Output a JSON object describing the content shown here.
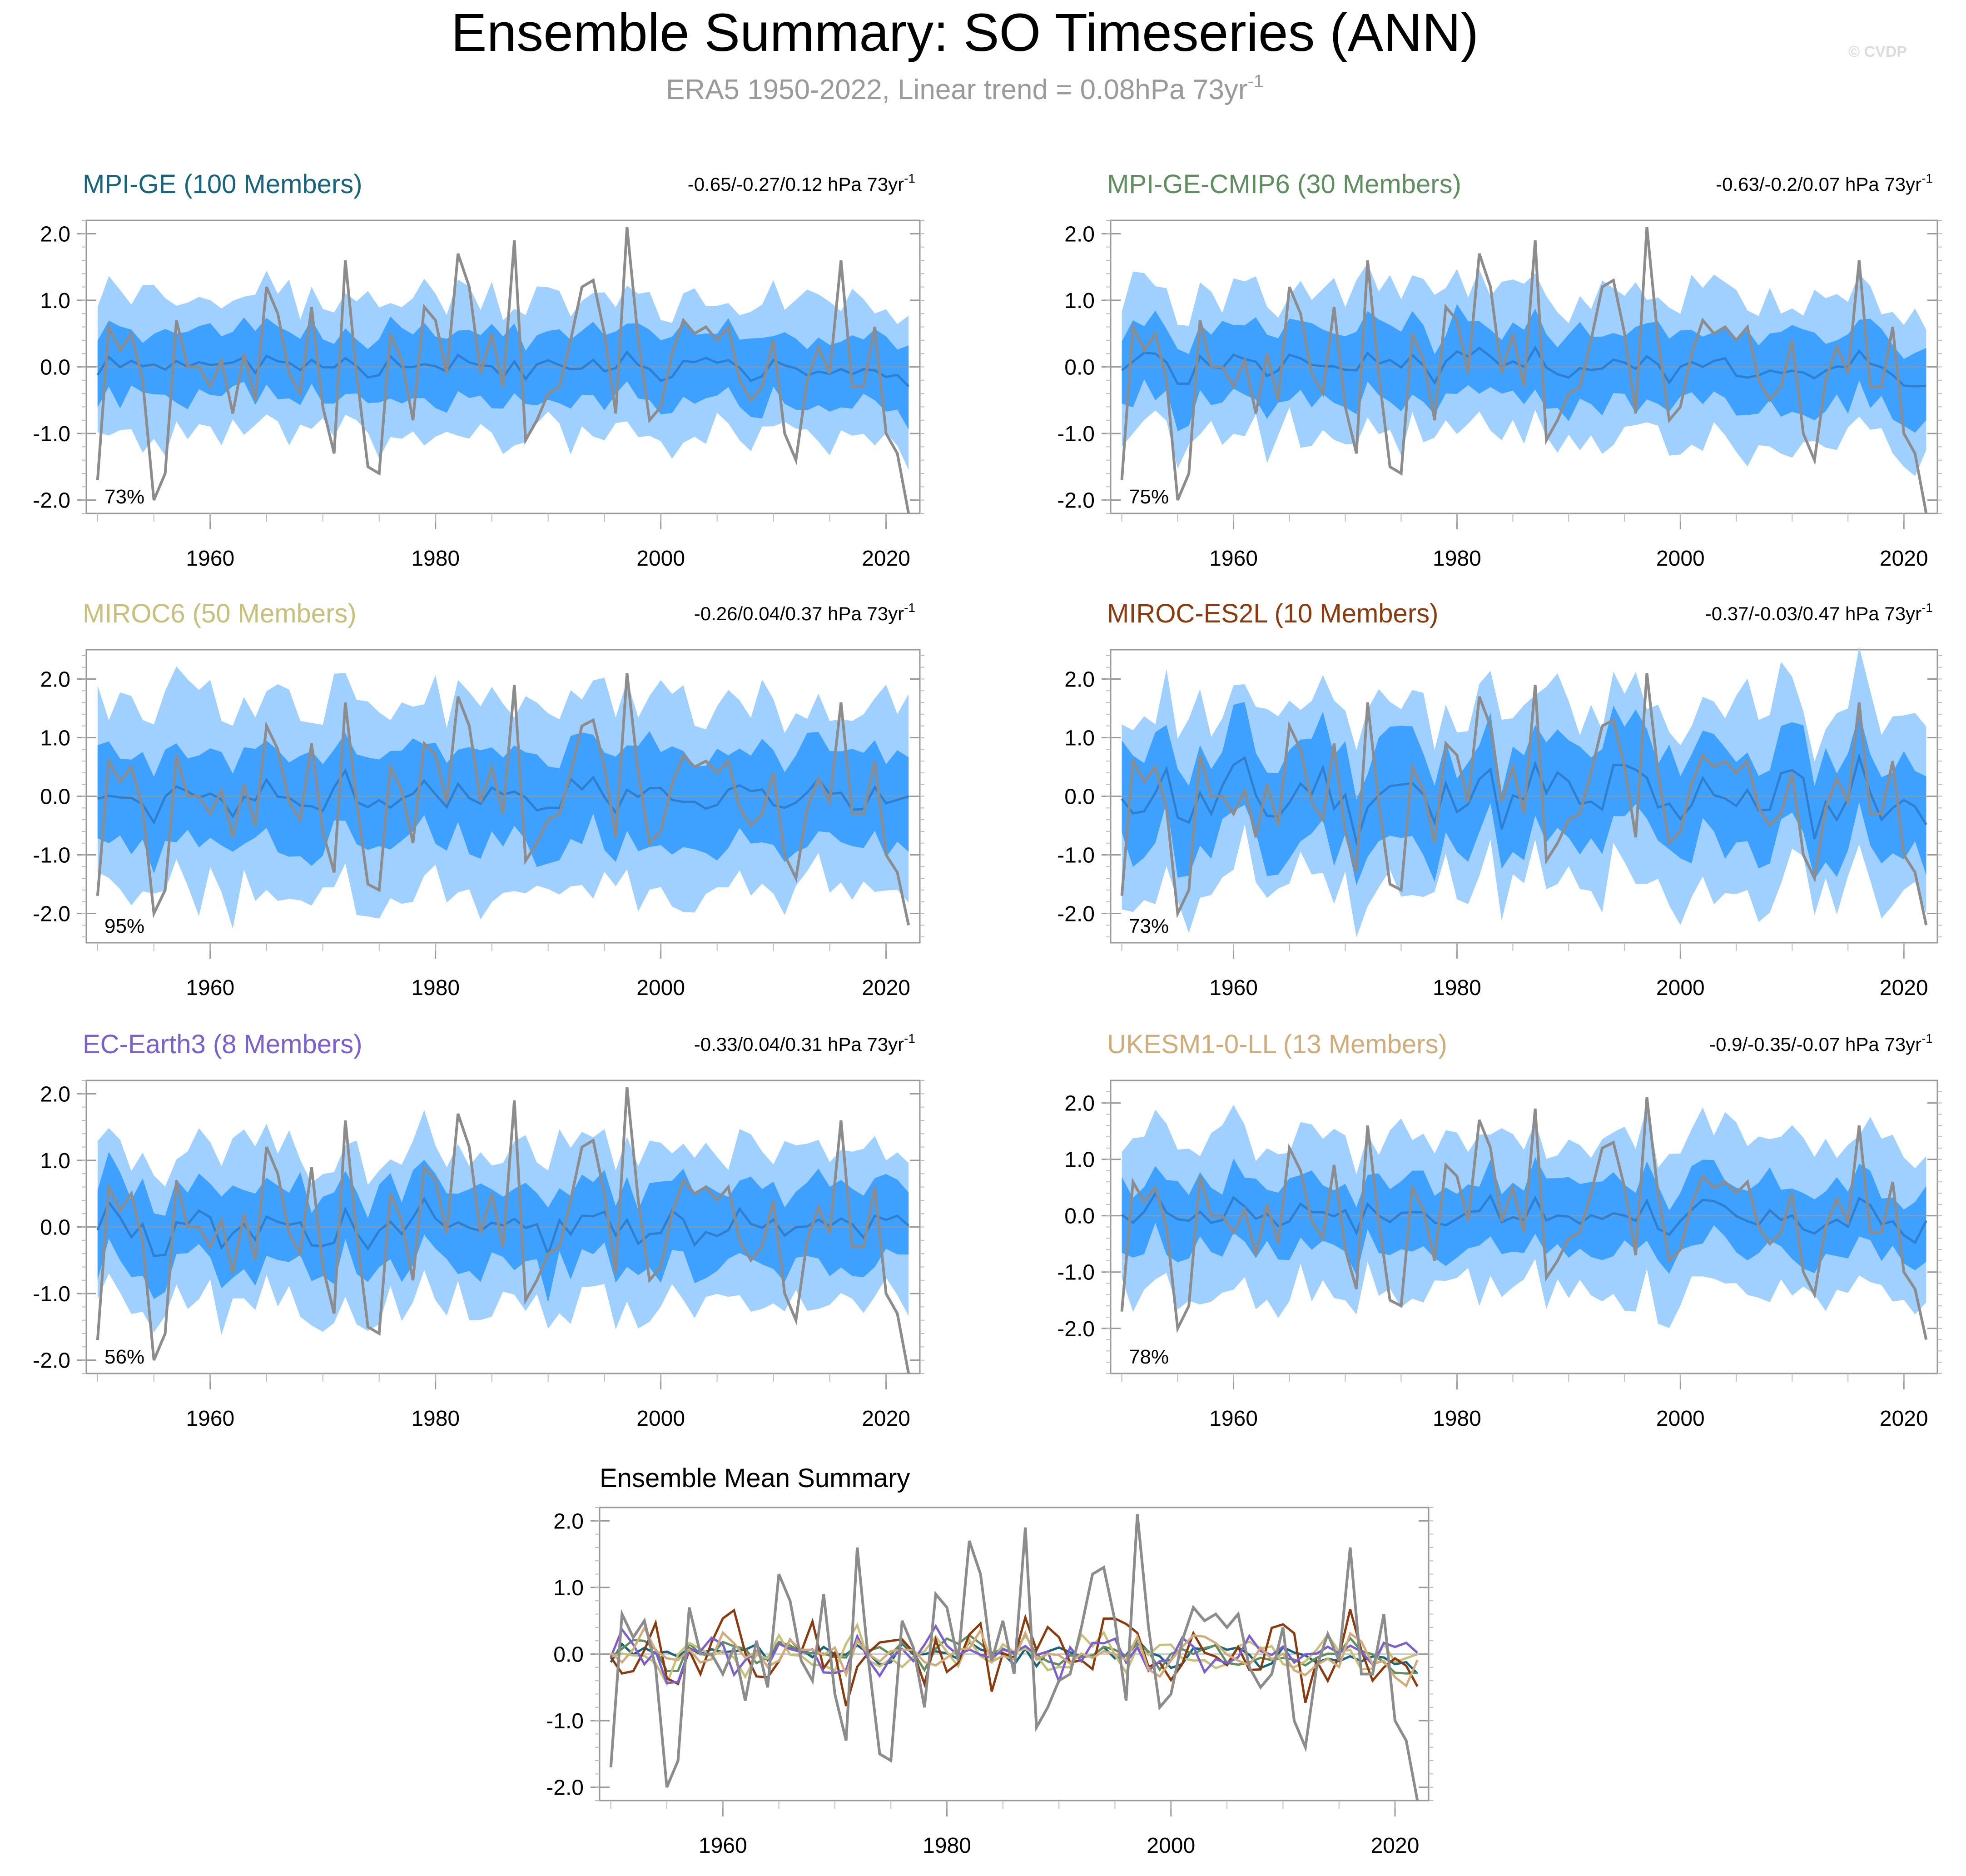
{
  "page": {
    "title": "Ensemble Summary: SO Timeseries (ANN)",
    "subtitle": "ERA5 1950-2022, Linear trend = 0.08hPa 73yr",
    "subtitle_sup": "-1",
    "watermark": "© CVDP"
  },
  "colors": {
    "obs": "#8c8c8c",
    "band_outer": "#9fd0ff",
    "band_inner": "#3fa1ff",
    "ens_mean": "#2f7fcf",
    "zero_line": "#9a9a9a"
  },
  "chart_data": [
    {
      "type": "line",
      "id": "mpi-ge",
      "title": "MPI-GE (100 Members)",
      "title_color": "#16647e",
      "trend_label": "-0.65/-0.27/0.12 hPa 73yr",
      "trend_sup": "-1",
      "percent_label": "73%",
      "band_amp": {
        "outer": 1.0,
        "inner": 0.5
      },
      "mean_amp": 0.12,
      "mean_trend": -0.2,
      "mean_seed": 3,
      "xlim": [
        1949,
        2023
      ],
      "ylim": [
        -2.2,
        2.2
      ],
      "yticks": [
        "2.0",
        "1.0",
        "0.0",
        "-1.0",
        "-2.0"
      ],
      "xticks": [
        "1960",
        "1980",
        "2000",
        "2020"
      ]
    },
    {
      "type": "line",
      "id": "mpi-ge-cmip6",
      "title": "MPI-GE-CMIP6 (30 Members)",
      "title_color": "#5f8f5f",
      "trend_label": "-0.63/-0.2/0.07 hPa 73yr",
      "trend_sup": "-1",
      "percent_label": "75%",
      "band_amp": {
        "outer": 1.05,
        "inner": 0.55
      },
      "mean_amp": 0.18,
      "mean_trend": -0.2,
      "mean_seed": 5,
      "xlim": [
        1949,
        2023
      ],
      "ylim": [
        -2.2,
        2.2
      ],
      "yticks": [
        "2.0",
        "1.0",
        "0.0",
        "-1.0",
        "-2.0"
      ],
      "xticks": [
        "1960",
        "1980",
        "2000",
        "2020"
      ]
    },
    {
      "type": "line",
      "id": "miroc6",
      "title": "MIROC6 (50 Members)",
      "title_color": "#c8c07a",
      "trend_label": "-0.26/0.04/0.37 hPa 73yr",
      "trend_sup": "-1",
      "percent_label": "95%",
      "band_amp": {
        "outer": 1.6,
        "inner": 0.8
      },
      "mean_amp": 0.25,
      "mean_trend": 0.04,
      "mean_seed": 7,
      "xlim": [
        1949,
        2023
      ],
      "ylim": [
        -2.5,
        2.5
      ],
      "yticks": [
        "2.0",
        "1.0",
        "0.0",
        "-1.0",
        "-2.0"
      ],
      "xticks": [
        "1960",
        "1980",
        "2000",
        "2020"
      ]
    },
    {
      "type": "line",
      "id": "miroc-es2l",
      "title": "MIROC-ES2L (10 Members)",
      "title_color": "#8b3a0e",
      "trend_label": "-0.37/-0.03/0.47 hPa 73yr",
      "trend_sup": "-1",
      "percent_label": "73%",
      "band_amp": {
        "outer": 1.5,
        "inner": 0.8
      },
      "mean_amp": 0.55,
      "mean_trend": -0.03,
      "mean_seed": 11,
      "xlim": [
        1949,
        2023
      ],
      "ylim": [
        -2.5,
        2.5
      ],
      "yticks": [
        "2.0",
        "1.0",
        "0.0",
        "-1.0",
        "-2.0"
      ],
      "xticks": [
        "1960",
        "1980",
        "2000",
        "2020"
      ]
    },
    {
      "type": "line",
      "id": "ec-earth3",
      "title": "EC-Earth3 (8 Members)",
      "title_color": "#7c5fcf",
      "trend_label": "-0.33/0.04/0.31 hPa 73yr",
      "trend_sup": "-1",
      "percent_label": "56%",
      "band_amp": {
        "outer": 1.1,
        "inner": 0.6
      },
      "mean_amp": 0.3,
      "mean_trend": 0.04,
      "mean_seed": 13,
      "xlim": [
        1949,
        2023
      ],
      "ylim": [
        -2.2,
        2.2
      ],
      "yticks": [
        "2.0",
        "1.0",
        "0.0",
        "-1.0",
        "-2.0"
      ],
      "xticks": [
        "1960",
        "1980",
        "2000",
        "2020"
      ]
    },
    {
      "type": "line",
      "id": "ukesm1-0-ll",
      "title": "UKESM1-0-LL (13 Members)",
      "title_color": "#d2ab7a",
      "trend_label": "-0.9/-0.35/-0.07 hPa 73yr",
      "trend_sup": "-1",
      "percent_label": "78%",
      "band_amp": {
        "outer": 1.3,
        "inner": 0.6
      },
      "mean_amp": 0.25,
      "mean_trend": -0.35,
      "mean_seed": 17,
      "xlim": [
        1949,
        2023
      ],
      "ylim": [
        -2.8,
        2.4
      ],
      "yticks": [
        "2.0",
        "1.0",
        "0.0",
        "-1.0",
        "-2.0"
      ],
      "xticks": [
        "1960",
        "1980",
        "2000",
        "2020"
      ]
    },
    {
      "type": "line",
      "id": "ensemble-mean-summary",
      "title": "Ensemble Mean Summary",
      "title_color": "#000000",
      "xlim": [
        1949,
        2023
      ],
      "ylim": [
        -2.2,
        2.2
      ],
      "yticks": [
        "2.0",
        "1.0",
        "0.0",
        "-1.0",
        "-2.0"
      ],
      "xticks": [
        "1960",
        "1980",
        "2000",
        "2020"
      ],
      "series_colors": [
        "#16647e",
        "#5f8f5f",
        "#c8c07a",
        "#8b3a0e",
        "#7c5fcf",
        "#d2ab7a"
      ]
    }
  ],
  "obs_series": {
    "name": "ERA5",
    "start_year": 1950,
    "values": [
      -1.7,
      0.6,
      0.25,
      0.5,
      -0.2,
      -2.0,
      -1.6,
      0.7,
      0.0,
      0.0,
      -0.3,
      0.1,
      -0.7,
      0.2,
      -0.5,
      1.2,
      0.8,
      -0.1,
      -0.4,
      0.9,
      -0.6,
      -1.3,
      1.6,
      -0.1,
      -1.5,
      -1.6,
      0.5,
      0.1,
      -0.8,
      0.9,
      0.7,
      -0.1,
      1.7,
      1.2,
      -0.1,
      0.5,
      -0.3,
      1.9,
      -1.1,
      -0.8,
      -0.4,
      -0.3,
      0.4,
      1.2,
      1.3,
      0.5,
      -0.7,
      2.1,
      0.4,
      -0.8,
      -0.6,
      0.2,
      0.7,
      0.5,
      0.6,
      0.4,
      0.6,
      -0.2,
      -0.5,
      -0.3,
      0.4,
      -1.0,
      -1.4,
      -0.2,
      0.3,
      -0.1,
      1.6,
      -0.3,
      -0.3,
      0.6,
      -1.0,
      -1.3,
      -2.2
    ]
  }
}
